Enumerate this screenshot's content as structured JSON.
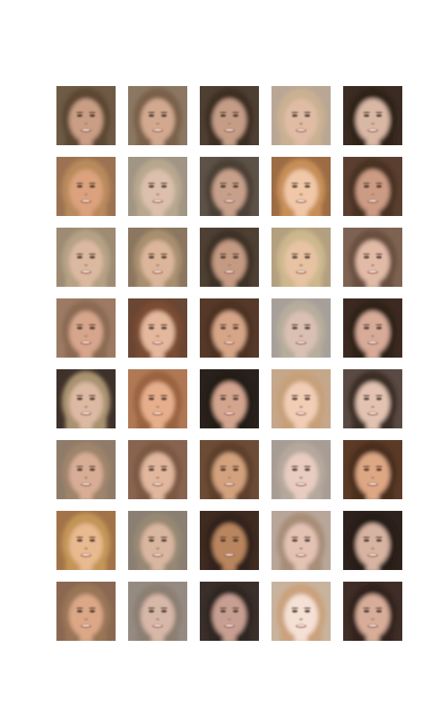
{
  "grid": {
    "rows": 8,
    "cols": 5,
    "image_kind": "blurred face sample"
  },
  "faces": [
    {
      "bg": "#6e5a45",
      "hair": "#5b4631",
      "skin": "#c99e84"
    },
    {
      "bg": "#8b7763",
      "hair": "#7a6148",
      "skin": "#d2a98f"
    },
    {
      "bg": "#4e3f33",
      "hair": "#3e2f23",
      "skin": "#c59d87"
    },
    {
      "bg": "#b9a694",
      "hair": "#c9b191",
      "skin": "#e0bca5"
    },
    {
      "bg": "#3b2b22",
      "hair": "#2e2119",
      "skin": "#d9b7a5"
    },
    {
      "bg": "#9c7252",
      "hair": "#b88a5c",
      "skin": "#dba27d"
    },
    {
      "bg": "#a19585",
      "hair": "#b7a78e",
      "skin": "#dcc0ad"
    },
    {
      "bg": "#5d5247",
      "hair": "#4b3f34",
      "skin": "#c7a08b"
    },
    {
      "bg": "#9c6c45",
      "hair": "#c78e57",
      "skin": "#f0c8a8"
    },
    {
      "bg": "#5a3f30",
      "hair": "#4a3124",
      "skin": "#cc9b84"
    },
    {
      "bg": "#9d8b73",
      "hair": "#b6a184",
      "skin": "#dbb9a0"
    },
    {
      "bg": "#8b7660",
      "hair": "#a88f6e",
      "skin": "#dcb69b"
    },
    {
      "bg": "#4f4034",
      "hair": "#3e3128",
      "skin": "#c49a82"
    },
    {
      "bg": "#b3a080",
      "hair": "#cdb78d",
      "skin": "#e7c3a3"
    },
    {
      "bg": "#7f6352",
      "hair": "#6a5040",
      "skin": "#e2bba7"
    },
    {
      "bg": "#9c7a63",
      "hair": "#8b6a52",
      "skin": "#d6a58c"
    },
    {
      "bg": "#6a4634",
      "hair": "#7a4c33",
      "skin": "#e4b89c"
    },
    {
      "bg": "#56392a",
      "hair": "#4d3224",
      "skin": "#d6a587"
    },
    {
      "bg": "#a7a09a",
      "hair": "#b8ad9b",
      "skin": "#d9c0b3"
    },
    {
      "bg": "#3c2a22",
      "hair": "#2f2019",
      "skin": "#d8ab99"
    },
    {
      "bg": "#3e3129",
      "hair": "#a8926f",
      "skin": "#dcb9a3"
    },
    {
      "bg": "#b07854",
      "hair": "#9a6340",
      "skin": "#e6ae8b"
    },
    {
      "bg": "#2a211d",
      "hair": "#221a16",
      "skin": "#d3a58f"
    },
    {
      "bg": "#c5a78a",
      "hair": "#c7a07a",
      "skin": "#f1cdb6"
    },
    {
      "bg": "#5a4a43",
      "hair": "#3b2d27",
      "skin": "#e3c2b1"
    },
    {
      "bg": "#8f7b69",
      "hair": "#9e846a",
      "skin": "#d8ad96"
    },
    {
      "bg": "#886450",
      "hair": "#7c5842",
      "skin": "#e1b79d"
    },
    {
      "bg": "#6c4c36",
      "hair": "#5d3f2b",
      "skin": "#d3a17d"
    },
    {
      "bg": "#a89d95",
      "hair": "#b5a89b",
      "skin": "#e8ccc1"
    },
    {
      "bg": "#5b3a27",
      "hair": "#4a2e1f",
      "skin": "#dea784"
    },
    {
      "bg": "#a27348",
      "hair": "#c39557",
      "skin": "#e9b98f"
    },
    {
      "bg": "#8a7f72",
      "hair": "#978873",
      "skin": "#d9b6a0"
    },
    {
      "bg": "#3f2b20",
      "hair": "#33231a",
      "skin": "#b9855f"
    },
    {
      "bg": "#b8a69a",
      "hair": "#a88e78",
      "skin": "#e3c2b4"
    },
    {
      "bg": "#2d221d",
      "hair": "#251b17",
      "skin": "#d7b3a2"
    },
    {
      "bg": "#8a6851",
      "hair": "#9a7456",
      "skin": "#dba787"
    },
    {
      "bg": "#958b83",
      "hair": "#8c7f72",
      "skin": "#d7b7a8"
    },
    {
      "bg": "#3a2f2b",
      "hair": "#2f2522",
      "skin": "#c79f92"
    },
    {
      "bg": "#c8b39e",
      "hair": "#caa27c",
      "skin": "#f5e0d5"
    },
    {
      "bg": "#3f2e27",
      "hair": "#33241e",
      "skin": "#d7ad99"
    }
  ]
}
